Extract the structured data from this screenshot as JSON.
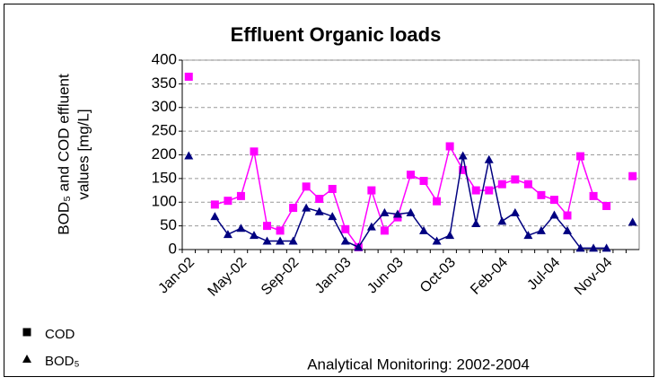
{
  "chart_data": {
    "type": "line",
    "title": "Effluent Organic loads",
    "y_label": [
      "BOD₅ and COD effluent",
      "values [mg/L]"
    ],
    "x_label": "Analytical Monitoring: 2002-2004",
    "categories": [
      "Jan-02",
      null,
      null,
      null,
      "May-02",
      null,
      null,
      null,
      "Sep-02",
      null,
      null,
      null,
      "Jan-03",
      null,
      null,
      null,
      "Jun-03",
      null,
      null,
      null,
      "Oct-03",
      null,
      null,
      null,
      "Feb-04",
      null,
      null,
      null,
      "Jul-04",
      null,
      null,
      null,
      "Nov-04",
      null,
      null
    ],
    "series": [
      {
        "name": "COD",
        "color": "#ff00ff",
        "marker": "square",
        "values": [
          365,
          null,
          95,
          103,
          113,
          207,
          50,
          40,
          88,
          133,
          107,
          128,
          43,
          5,
          125,
          40,
          68,
          158,
          145,
          102,
          218,
          168,
          125,
          125,
          138,
          148,
          138,
          115,
          105,
          72,
          197,
          113,
          92,
          null,
          155
        ]
      },
      {
        "name": "BOD₅",
        "color": "#000080",
        "marker": "triangle",
        "values": [
          198,
          null,
          70,
          32,
          45,
          30,
          18,
          18,
          18,
          88,
          80,
          70,
          18,
          5,
          48,
          78,
          75,
          78,
          40,
          18,
          30,
          198,
          55,
          190,
          60,
          78,
          30,
          40,
          73,
          40,
          3,
          3,
          3,
          null,
          58
        ]
      }
    ],
    "ylim": [
      0,
      400
    ],
    "yticks": [
      0,
      50,
      100,
      150,
      200,
      250,
      300,
      350,
      400
    ],
    "grid": true
  }
}
